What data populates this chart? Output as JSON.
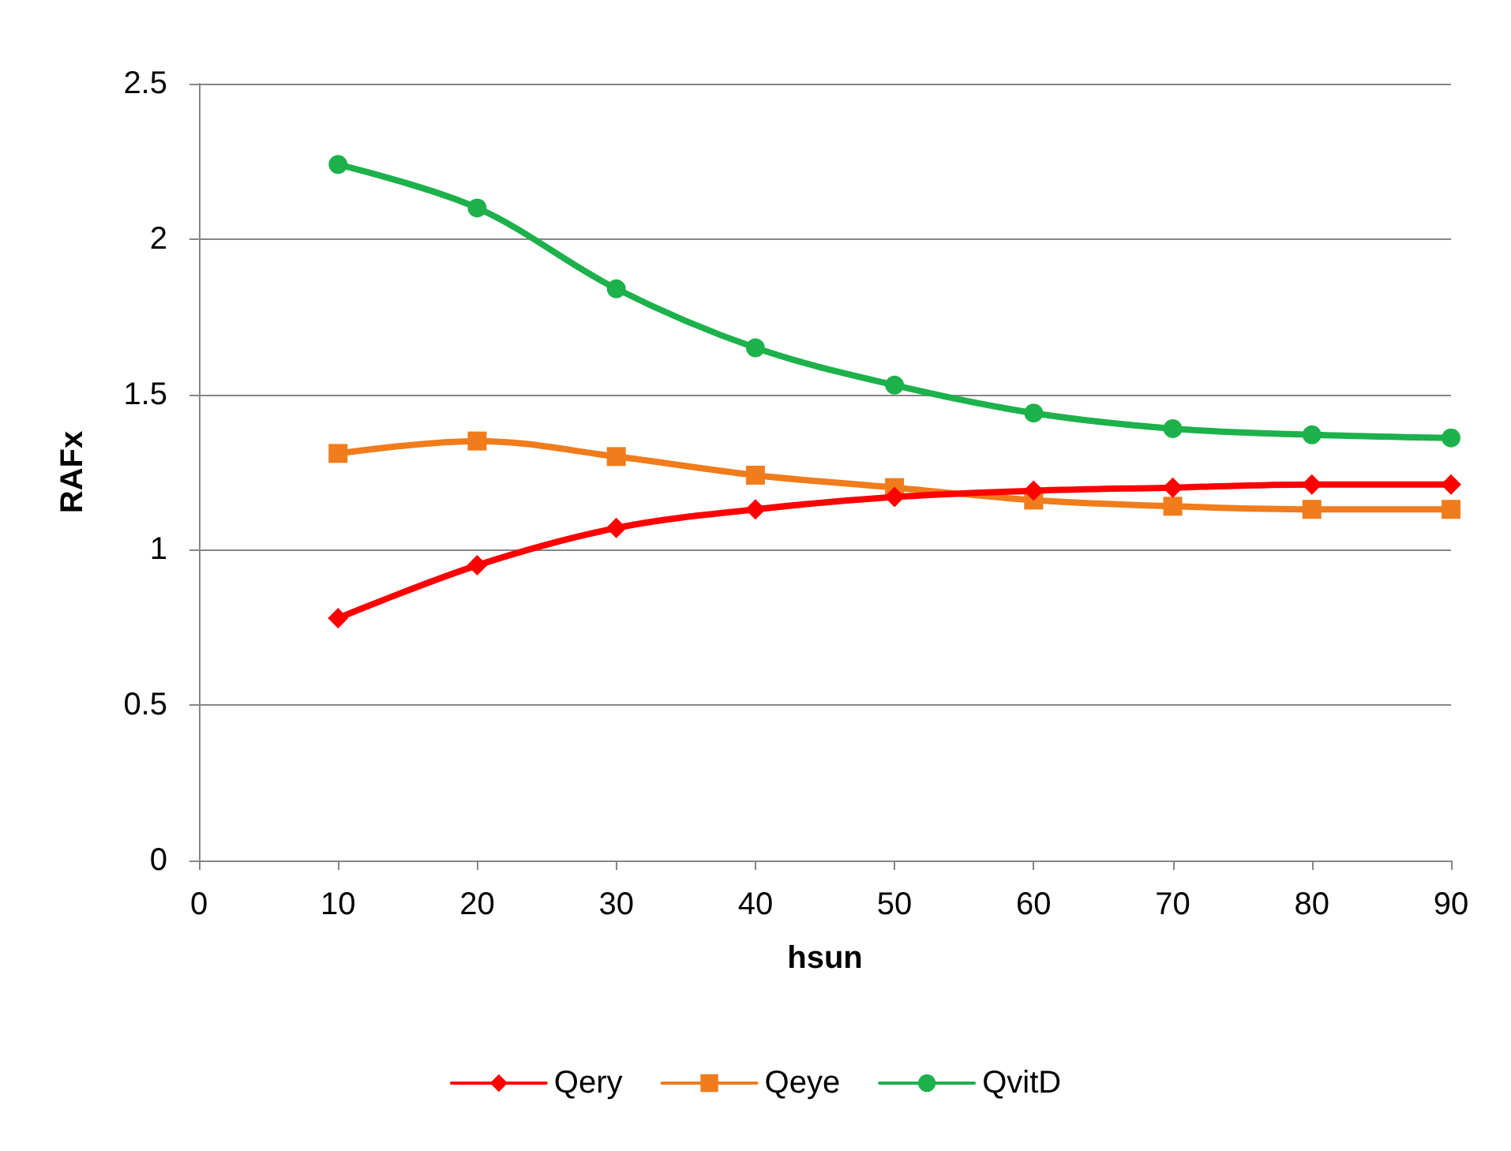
{
  "chart_data": {
    "type": "line",
    "xlabel": "hsun",
    "ylabel": "RAFx",
    "x": [
      10,
      20,
      30,
      40,
      50,
      60,
      70,
      80,
      90
    ],
    "series": [
      {
        "name": "Qery",
        "color": "#ff0000",
        "marker": "diamond",
        "values": [
          0.78,
          0.95,
          1.07,
          1.13,
          1.17,
          1.19,
          1.2,
          1.21,
          1.21
        ]
      },
      {
        "name": "Qeye",
        "color": "#f07c1c",
        "marker": "square",
        "values": [
          1.31,
          1.35,
          1.3,
          1.24,
          1.2,
          1.16,
          1.14,
          1.13,
          1.13
        ]
      },
      {
        "name": "QvitD",
        "color": "#1db14b",
        "marker": "circle",
        "values": [
          2.24,
          2.1,
          1.84,
          1.65,
          1.53,
          1.44,
          1.39,
          1.37,
          1.36
        ]
      }
    ],
    "xlim": [
      0,
      90
    ],
    "xticks": [
      0,
      10,
      20,
      30,
      40,
      50,
      60,
      70,
      80,
      90
    ],
    "ylim": [
      0,
      2.5
    ],
    "yticks": [
      0,
      0.5,
      1,
      1.5,
      2,
      2.5
    ],
    "grid": "y",
    "legend": "bottom",
    "line_style": "solid"
  }
}
